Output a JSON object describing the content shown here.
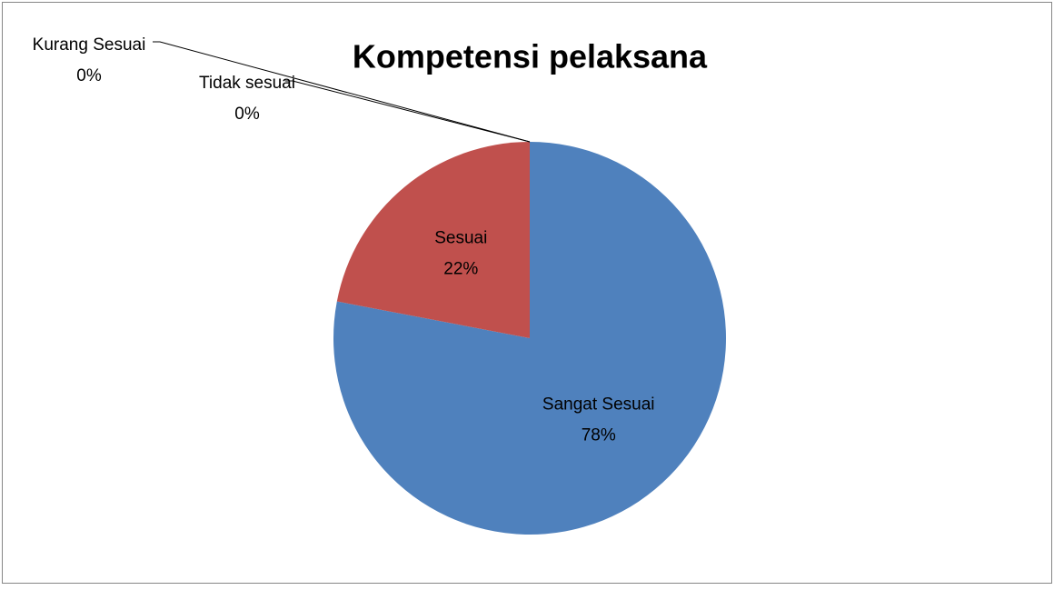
{
  "chart_data": {
    "type": "pie",
    "title": "Kompetensi pelaksana",
    "categories": [
      "Sangat Sesuai",
      "Sesuai",
      "Kurang Sesuai",
      "Tidak sesuai"
    ],
    "values": [
      78,
      22,
      0,
      0
    ],
    "value_labels": [
      "78%",
      "22%",
      "0%",
      "0%"
    ],
    "colors": [
      "#4f81bd",
      "#c0504d",
      "#9bbb59",
      "#8064a2"
    ]
  }
}
